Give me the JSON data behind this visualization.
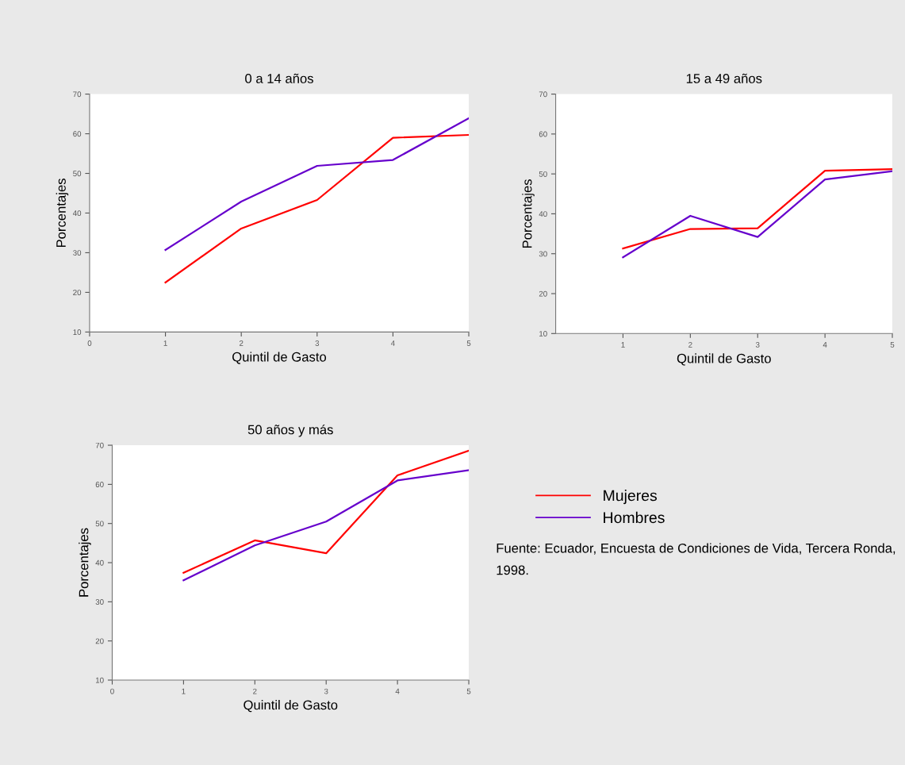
{
  "chart_data": [
    {
      "type": "line",
      "title": "0 a 14 años",
      "xlabel": "Quintil de Gasto",
      "ylabel": "Porcentajes",
      "x": [
        1,
        2,
        3,
        4,
        5
      ],
      "xlim": [
        0,
        5
      ],
      "xticks": [
        0,
        1,
        2,
        3,
        4,
        5
      ],
      "ylim": [
        10,
        70
      ],
      "yticks": [
        10,
        20,
        30,
        40,
        50,
        60,
        70
      ],
      "grid": false,
      "series": [
        {
          "color": "#ff0000",
          "values": [
            22.5,
            36.1,
            43.3,
            59,
            59.7
          ]
        },
        {
          "color": "#6600cc",
          "values": [
            30.7,
            42.9,
            51.9,
            53.4,
            63.9
          ]
        }
      ]
    },
    {
      "type": "line",
      "title": "15 a 49 años",
      "xlabel": "Quintil de Gasto",
      "ylabel": "Porcentajes",
      "x": [
        1,
        2,
        3,
        4,
        5
      ],
      "xlim": [
        0,
        5
      ],
      "xticks": [
        1,
        2,
        3,
        4,
        5
      ],
      "ylim": [
        10,
        70
      ],
      "yticks": [
        10,
        20,
        30,
        40,
        50,
        60,
        70
      ],
      "grid": false,
      "series": [
        {
          "color": "#ff0000",
          "values": [
            31.3,
            36.2,
            36.4,
            50.8,
            51.2
          ]
        },
        {
          "color": "#6600cc",
          "values": [
            29.1,
            39.5,
            34.2,
            48.6,
            50.7
          ]
        }
      ]
    },
    {
      "type": "line",
      "title": "50 años y más",
      "xlabel": "Quintil de Gasto",
      "ylabel": "Porcentajes",
      "x": [
        1,
        2,
        3,
        4,
        5
      ],
      "xlim": [
        0,
        5
      ],
      "xticks": [
        0,
        1,
        2,
        3,
        4,
        5
      ],
      "ylim": [
        10,
        70
      ],
      "yticks": [
        10,
        20,
        30,
        40,
        50,
        60,
        70
      ],
      "grid": false,
      "legend": "right",
      "annotations": [
        "Fuente: Ecuador, Encuesta de Condiciones de Vida, Tercera Ronda, 1998."
      ],
      "series": [
        {
          "name": "Mujeres",
          "color": "#ff0000",
          "values": [
            37.4,
            45.7,
            42.4,
            62.3,
            68.6
          ]
        },
        {
          "name": "Hombres",
          "color": "#6600cc",
          "values": [
            35.5,
            44.4,
            50.5,
            61,
            63.6
          ]
        }
      ]
    }
  ]
}
